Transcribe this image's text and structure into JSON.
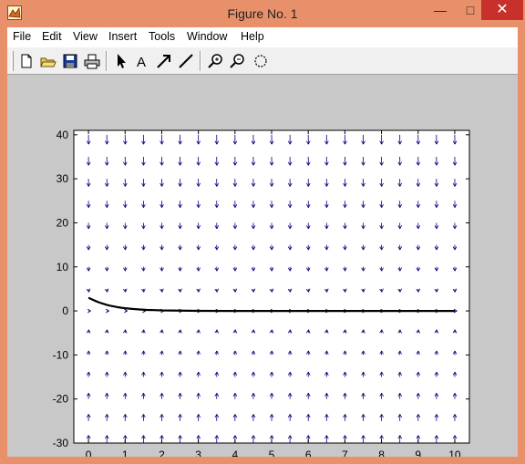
{
  "window": {
    "title": "Figure No. 1"
  },
  "menu": [
    "File",
    "Edit",
    "View",
    "Insert",
    "Tools",
    "Window",
    "Help"
  ],
  "toolbar": [
    "new-figure",
    "open-file",
    "save",
    "print",
    "select-arrow",
    "insert-text",
    "insert-arrow",
    "insert-line",
    "zoom-in",
    "zoom-out",
    "rotate-3d"
  ],
  "chart_data": {
    "type": "quiver",
    "title": "",
    "xlabel": "",
    "ylabel": "",
    "xlim": [
      -0.4,
      10.4
    ],
    "ylim": [
      -30,
      41
    ],
    "xticks": [
      "0",
      "1",
      "2",
      "3",
      "4",
      "5",
      "6",
      "7",
      "8",
      "9",
      "10"
    ],
    "yticks": [
      "40",
      "30",
      "20",
      "10",
      "0",
      "-10",
      "-20",
      "-30"
    ],
    "grid": false,
    "quiver_color": "#00007f",
    "quiver_x": [
      0,
      0.5,
      1,
      1.5,
      2,
      2.5,
      3,
      3.5,
      4,
      4.5,
      5,
      5.5,
      6,
      6.5,
      7,
      7.5,
      8,
      8.5,
      9,
      9.5,
      10
    ],
    "quiver_y": [
      40,
      35,
      30,
      25,
      20,
      15,
      10,
      5,
      0,
      -5,
      -10,
      -15,
      -20,
      -25,
      -30
    ],
    "series": [
      {
        "type": "line",
        "color": "#000000",
        "x": [
          0,
          0.1,
          0.2,
          0.3,
          0.4,
          0.5,
          0.6,
          0.7,
          0.8,
          0.9,
          1.0,
          1.2,
          1.4,
          1.6,
          1.8,
          2,
          3,
          4,
          5,
          6,
          7,
          8,
          9,
          10
        ],
        "y": [
          3.0,
          2.6,
          2.22,
          1.9,
          1.62,
          1.38,
          1.17,
          1.0,
          0.85,
          0.72,
          0.61,
          0.44,
          0.32,
          0.23,
          0.17,
          0.12,
          0.02,
          0,
          0,
          0,
          0,
          0,
          0,
          0
        ]
      }
    ]
  }
}
